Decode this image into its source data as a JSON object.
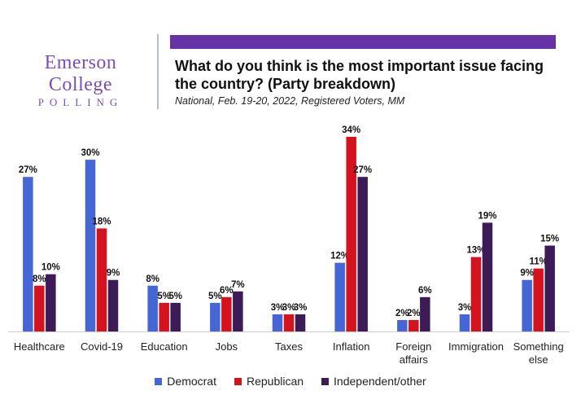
{
  "logo": {
    "main": "Emerson College",
    "sub": "POLLING"
  },
  "header": {
    "title": "What do you think is the most important issue facing the country? (Party breakdown)",
    "subtitle": "National, Feb. 19-20, 2022, Registered Voters, MM"
  },
  "colors": {
    "accent_bar": "#6633a6",
    "logo": "#7a4fb5"
  },
  "chart_data": {
    "type": "bar",
    "categories": [
      "Healthcare",
      "Covid-19",
      "Education",
      "Jobs",
      "Taxes",
      "Inflation",
      "Foreign affairs",
      "Immigration",
      "Something else"
    ],
    "series": [
      {
        "name": "Democrat",
        "color": "#4666d6",
        "values": [
          27,
          30,
          8,
          5,
          3,
          12,
          2,
          3,
          9
        ]
      },
      {
        "name": "Republican",
        "color": "#d4131f",
        "values": [
          8,
          18,
          5,
          6,
          3,
          34,
          2,
          13,
          11
        ]
      },
      {
        "name": "Independent/other",
        "color": "#3d1b57",
        "values": [
          10,
          9,
          5,
          7,
          3,
          27,
          6,
          19,
          15
        ]
      }
    ],
    "ylim": [
      0,
      34
    ],
    "value_suffix": "%",
    "grid": false,
    "legend_position": "bottom"
  }
}
